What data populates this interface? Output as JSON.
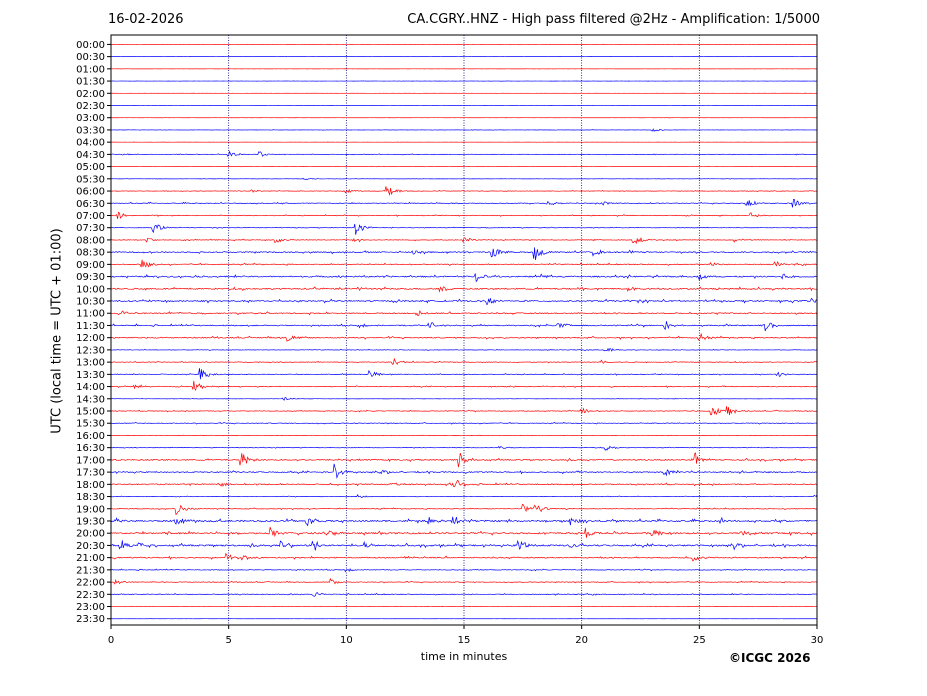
{
  "header": {
    "date": "16-02-2026",
    "title": "CA.CGRY..HNZ - High pass filtered @2Hz - Amplification: 1/5000"
  },
  "credit": "©ICGC 2026",
  "chart_data": {
    "type": "line",
    "title": "CA.CGRY..HNZ - High pass filtered @2Hz - Amplification: 1/5000",
    "xlabel": "time in minutes",
    "ylabel": "UTC (local time = UTC + 01:00)",
    "xlim": [
      0,
      30
    ],
    "x_ticks": [
      0,
      5,
      10,
      15,
      20,
      25,
      30
    ],
    "y_ticks": [
      "00:00",
      "00:30",
      "01:00",
      "01:30",
      "02:00",
      "02:30",
      "03:00",
      "03:30",
      "04:00",
      "04:30",
      "05:00",
      "05:30",
      "06:00",
      "06:30",
      "07:00",
      "07:30",
      "08:00",
      "08:30",
      "09:00",
      "09:30",
      "10:00",
      "10:30",
      "11:00",
      "11:30",
      "12:00",
      "12:30",
      "13:00",
      "13:30",
      "14:00",
      "14:30",
      "15:00",
      "15:30",
      "16:00",
      "16:30",
      "17:00",
      "17:30",
      "18:00",
      "18:30",
      "19:00",
      "19:30",
      "20:00",
      "20:30",
      "21:00",
      "21:30",
      "22:00",
      "22:30",
      "23:00",
      "23:30"
    ],
    "grid": "vertical dotted at x ticks",
    "colors": {
      "even_trace": "#ff0000",
      "odd_trace": "#0000ff",
      "grid": "#000080"
    },
    "trace_activity": {
      "noise_level": [
        0.05,
        0.05,
        0.05,
        0.05,
        0.05,
        0.05,
        0.05,
        0.1,
        0.05,
        0.2,
        0.05,
        0.1,
        0.2,
        0.35,
        0.3,
        0.2,
        0.3,
        0.5,
        0.4,
        0.6,
        0.6,
        0.6,
        0.5,
        0.5,
        0.5,
        0.2,
        0.3,
        0.3,
        0.3,
        0.1,
        0.3,
        0.3,
        0.1,
        0.2,
        0.5,
        0.5,
        0.5,
        0.2,
        0.3,
        0.7,
        0.7,
        0.7,
        0.5,
        0.3,
        0.3,
        0.3,
        0.05,
        0.05
      ],
      "events": [
        [],
        [],
        [],
        [],
        [],
        [],
        [],
        [
          [
            23.0,
            2
          ]
        ],
        [],
        [
          [
            0.5,
            1.5
          ],
          [
            5.0,
            4
          ],
          [
            6.3,
            3
          ]
        ],
        [],
        [
          [
            8.2,
            1.5
          ]
        ],
        [
          [
            6.0,
            1.5
          ],
          [
            10.0,
            2
          ],
          [
            11.7,
            7
          ]
        ],
        [
          [
            18.5,
            3
          ],
          [
            20.8,
            3
          ],
          [
            27.0,
            5
          ],
          [
            29.0,
            6
          ]
        ],
        [
          [
            0.3,
            4
          ],
          [
            27.2,
            3
          ]
        ],
        [
          [
            1.8,
            6
          ],
          [
            10.4,
            7
          ]
        ],
        [
          [
            1.5,
            3
          ],
          [
            7.0,
            3
          ],
          [
            10.3,
            3
          ],
          [
            15.0,
            3
          ],
          [
            22.2,
            6
          ],
          [
            26.5,
            2
          ]
        ],
        [
          [
            12.8,
            3
          ],
          [
            16.2,
            6
          ],
          [
            18.0,
            9
          ],
          [
            20.5,
            4
          ],
          [
            22.0,
            3
          ]
        ],
        [
          [
            1.3,
            6
          ],
          [
            25.5,
            3
          ],
          [
            28.2,
            3
          ]
        ],
        [
          [
            15.5,
            6
          ],
          [
            18.3,
            4
          ],
          [
            25.0,
            4
          ],
          [
            28.5,
            4
          ]
        ],
        [
          [
            10.5,
            3
          ],
          [
            14.0,
            4
          ],
          [
            22.0,
            3
          ]
        ],
        [
          [
            16.0,
            4
          ],
          [
            29.8,
            3
          ]
        ],
        [
          [
            0.5,
            3
          ],
          [
            13.0,
            3
          ]
        ],
        [
          [
            10.5,
            3
          ],
          [
            13.5,
            5
          ],
          [
            19.0,
            4
          ],
          [
            23.5,
            6
          ],
          [
            27.8,
            7
          ]
        ],
        [
          [
            7.5,
            4
          ],
          [
            25.0,
            5
          ]
        ],
        [
          [
            21.0,
            3
          ]
        ],
        [
          [
            12.0,
            4
          ],
          [
            20.8,
            3
          ]
        ],
        [
          [
            3.8,
            7
          ],
          [
            11.0,
            5
          ],
          [
            28.3,
            3
          ]
        ],
        [
          [
            1.0,
            4
          ],
          [
            3.5,
            7
          ]
        ],
        [
          [
            7.3,
            2
          ]
        ],
        [
          [
            20.0,
            3
          ],
          [
            25.5,
            8
          ],
          [
            26.2,
            7
          ]
        ],
        [],
        [],
        [
          [
            16.5,
            2
          ],
          [
            21.0,
            3
          ]
        ],
        [
          [
            5.5,
            10
          ],
          [
            14.8,
            11
          ],
          [
            24.8,
            9
          ]
        ],
        [
          [
            9.5,
            9
          ],
          [
            11.5,
            3
          ],
          [
            23.5,
            5
          ]
        ],
        [
          [
            4.7,
            3
          ],
          [
            12.0,
            4
          ],
          [
            14.5,
            10
          ]
        ],
        [
          [
            10.5,
            2
          ],
          [
            29.9,
            3
          ]
        ],
        [
          [
            2.8,
            6
          ],
          [
            17.5,
            5
          ],
          [
            18.0,
            7
          ]
        ],
        [
          [
            0.2,
            4
          ],
          [
            2.7,
            6
          ],
          [
            8.3,
            6
          ],
          [
            13.5,
            4
          ],
          [
            14.5,
            5
          ],
          [
            19.5,
            4
          ],
          [
            25.8,
            3
          ]
        ],
        [
          [
            2.2,
            4
          ],
          [
            6.8,
            6
          ],
          [
            9.3,
            4
          ],
          [
            20.2,
            5
          ],
          [
            23.0,
            5
          ],
          [
            26.8,
            5
          ]
        ],
        [
          [
            0.4,
            5
          ],
          [
            1.2,
            4
          ],
          [
            7.2,
            4
          ],
          [
            8.6,
            7
          ],
          [
            10.8,
            4
          ],
          [
            17.3,
            8
          ],
          [
            19.5,
            3
          ],
          [
            26.5,
            4
          ]
        ],
        [
          [
            4.9,
            5
          ],
          [
            5.6,
            3
          ],
          [
            24.7,
            4
          ]
        ],
        [
          [
            10.0,
            2
          ]
        ],
        [
          [
            0.2,
            3
          ],
          [
            9.3,
            4
          ]
        ],
        [
          [
            7.5,
            2
          ],
          [
            8.6,
            3
          ]
        ],
        [],
        []
      ]
    }
  }
}
